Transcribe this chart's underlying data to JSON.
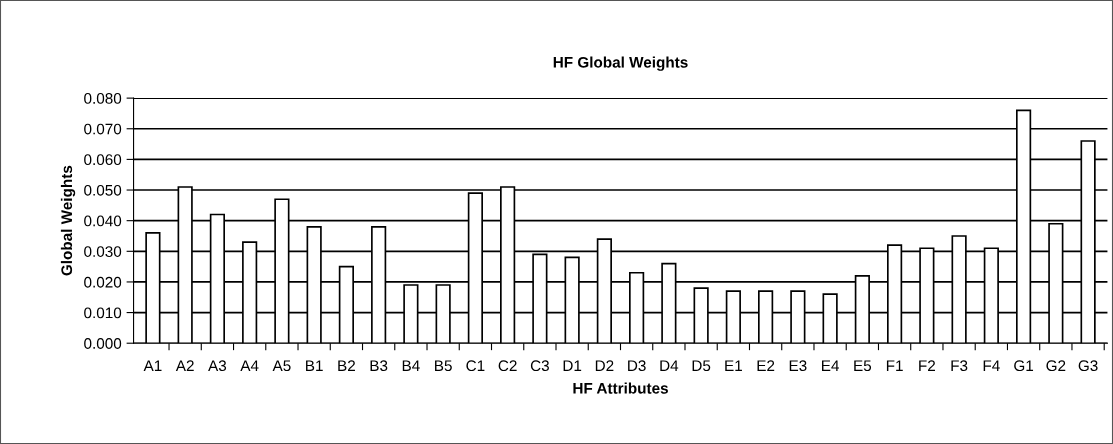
{
  "chart_data": {
    "type": "bar",
    "title": "HF Global Weights",
    "xlabel": "HF Attributes",
    "ylabel": "Global Weights",
    "categories": [
      "A1",
      "A2",
      "A3",
      "A4",
      "A5",
      "B1",
      "B2",
      "B3",
      "B4",
      "B5",
      "C1",
      "C2",
      "C3",
      "D1",
      "D2",
      "D3",
      "D4",
      "D5",
      "E1",
      "E2",
      "E3",
      "E4",
      "E5",
      "F1",
      "F2",
      "F3",
      "F4",
      "G1",
      "G2",
      "G3"
    ],
    "values": [
      0.036,
      0.051,
      0.042,
      0.033,
      0.047,
      0.038,
      0.025,
      0.038,
      0.019,
      0.019,
      0.049,
      0.051,
      0.029,
      0.028,
      0.034,
      0.023,
      0.026,
      0.018,
      0.017,
      0.017,
      0.017,
      0.016,
      0.022,
      0.032,
      0.031,
      0.035,
      0.031,
      0.076,
      0.039,
      0.066
    ],
    "color": "#ffffff",
    "ylim": [
      0,
      0.08
    ],
    "yticks": [
      {
        "value": 0,
        "label": "0.000"
      },
      {
        "value": 0.01,
        "label": "0.010"
      },
      {
        "value": 0.02,
        "label": "0.020"
      },
      {
        "value": 0.03,
        "label": "0.030"
      },
      {
        "value": 0.04,
        "label": "0.040"
      },
      {
        "value": 0.05,
        "label": "0.050"
      },
      {
        "value": 0.06,
        "label": "0.060"
      },
      {
        "value": 0.07,
        "label": "0.070"
      },
      {
        "value": 0.08,
        "label": "0.080"
      }
    ],
    "grid": "y",
    "legend": false
  }
}
